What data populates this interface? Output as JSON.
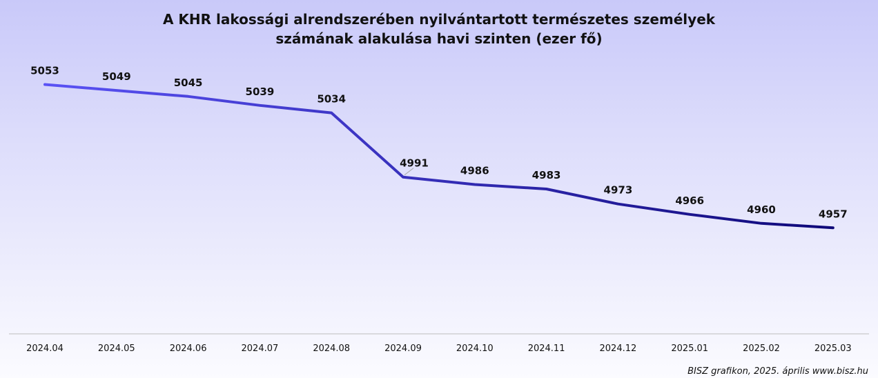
{
  "title": {
    "line1": "A KHR lakossági alrendszerében nyilvántartott természetes személyek",
    "line2": "számának alakulása havi szinten (ezer fő)"
  },
  "source": "BISZ grafikon, 2025. április www.bisz.hu",
  "colors": {
    "line_start": "#5a52f5",
    "line_end": "#0e0878",
    "axis": "#bcbcbc",
    "text": "#111111"
  },
  "chart_data": {
    "type": "line",
    "title": "A KHR lakossági alrendszerében nyilvántartott természetes személyek számának alakulása havi szinten (ezer fő)",
    "categories": [
      "2024.04",
      "2024.05",
      "2024.06",
      "2024.07",
      "2024.08",
      "2024.09",
      "2024.10",
      "2024.11",
      "2024.12",
      "2025.01",
      "2025.02",
      "2025.03"
    ],
    "values": [
      5053,
      5049,
      5045,
      5039,
      5034,
      4991,
      4986,
      4983,
      4973,
      4966,
      4960,
      4957
    ],
    "data_labels": [
      "5053",
      "5049",
      "5045",
      "5039",
      "5034",
      "4991",
      "4986",
      "4983",
      "4973",
      "4966",
      "4960",
      "4957"
    ],
    "ylim": [
      4886,
      5068
    ],
    "grid": false,
    "legend": "none"
  }
}
